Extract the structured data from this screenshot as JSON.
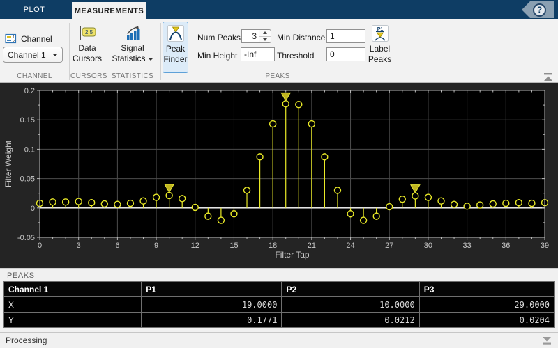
{
  "tabs": {
    "plot": "PLOT",
    "measurements": "MEASUREMENTS"
  },
  "help": {
    "glyph": "?"
  },
  "toolstrip": {
    "channel": {
      "label": "Channel",
      "selected": "Channel 1",
      "section": "CHANNEL"
    },
    "cursors": {
      "line1": "Data",
      "line2": "Cursors",
      "icon_text": "2.5",
      "section": "CURSORS"
    },
    "statistics": {
      "line1": "Signal",
      "line2": "Statistics",
      "section": "STATISTICS"
    },
    "peaks": {
      "finder_line1": "Peak",
      "finder_line2": "Finder",
      "num_peaks_label": "Num Peaks",
      "num_peaks_value": "3",
      "min_height_label": "Min Height",
      "min_height_value": "-Inf",
      "min_distance_label": "Min Distance",
      "min_distance_value": "1",
      "threshold_label": "Threshold",
      "threshold_value": "0",
      "label_line1": "Label",
      "label_line2": "Peaks",
      "label_icon_text": "P1",
      "section": "PEAKS"
    }
  },
  "chart_data": {
    "type": "stem",
    "xlabel": "Filter Tap",
    "ylabel": "Filter Weight",
    "xlim": [
      0,
      39
    ],
    "ylim": [
      -0.05,
      0.2
    ],
    "xticks": [
      0,
      3,
      6,
      9,
      12,
      15,
      18,
      21,
      24,
      27,
      30,
      33,
      36,
      39
    ],
    "xtick_labels": [
      "0",
      "3",
      "6",
      "9",
      "12",
      "15",
      "18",
      "21",
      "24",
      "27",
      "30",
      "33",
      "36",
      "39"
    ],
    "yticks": [
      -0.05,
      0,
      0.05,
      0.1,
      0.15,
      0.2
    ],
    "ytick_labels": [
      "-0.05",
      "0",
      "0.05",
      "0.1",
      "0.15",
      "0.2"
    ],
    "grid": true,
    "legend": "none",
    "series_color": "#e9e927",
    "x": [
      0,
      1,
      2,
      3,
      4,
      5,
      6,
      7,
      8,
      9,
      10,
      11,
      12,
      13,
      14,
      15,
      16,
      17,
      18,
      19,
      20,
      21,
      22,
      23,
      24,
      25,
      26,
      27,
      28,
      29,
      30,
      31,
      32,
      33,
      34,
      35,
      36,
      37,
      38,
      39
    ],
    "values": [
      0.008,
      0.01,
      0.01,
      0.011,
      0.009,
      0.007,
      0.006,
      0.008,
      0.012,
      0.018,
      0.0212,
      0.016,
      0.001,
      -0.014,
      -0.021,
      -0.01,
      0.03,
      0.087,
      0.143,
      0.1771,
      0.176,
      0.143,
      0.087,
      0.03,
      -0.01,
      -0.021,
      -0.014,
      0.002,
      0.015,
      0.0204,
      0.018,
      0.012,
      0.006,
      0.003,
      0.005,
      0.007,
      0.008,
      0.009,
      0.008,
      0.009
    ],
    "peaks": [
      {
        "label": "P1",
        "x": 19,
        "y": 0.1771
      },
      {
        "label": "P2",
        "x": 10,
        "y": 0.0212
      },
      {
        "label": "P3",
        "x": 29,
        "y": 0.0204
      }
    ]
  },
  "peaks_panel": {
    "title": "PEAKS",
    "table": {
      "headers": [
        "Channel 1",
        "P1",
        "P2",
        "P3"
      ],
      "rows": [
        {
          "label": "X",
          "values": [
            "19.0000",
            "10.0000",
            "29.0000"
          ]
        },
        {
          "label": "Y",
          "values": [
            "0.1771",
            "0.0212",
            "0.0204"
          ]
        }
      ]
    }
  },
  "status": {
    "text": "Processing"
  },
  "colors": {
    "tabbar": "#0e3d64",
    "toolstrip_bg": "#f2f2f2",
    "selected_border": "#5ea1d8",
    "figure_bg": "#242424",
    "axes_bg": "#000000",
    "grid": "#4d4d4d",
    "axis": "#b9b9b9",
    "baseline": "#ffffff",
    "stem_yellow": "#e9e927",
    "peak_marker_fill": "#bfb41f",
    "tick_text": "#c8c8c8"
  }
}
